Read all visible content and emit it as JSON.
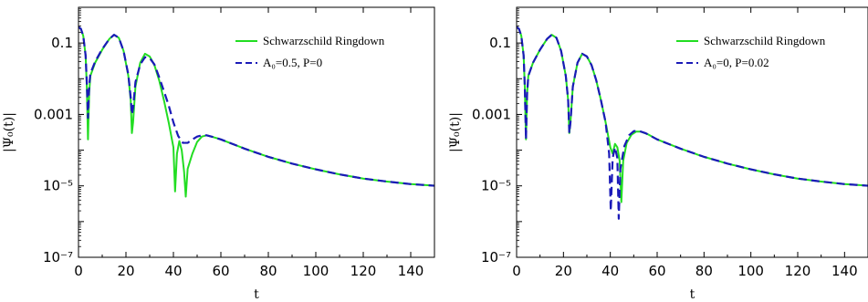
{
  "chart_data": [
    {
      "type": "line",
      "xlabel": "t",
      "ylabel": "|Ψ₀(t)|",
      "xlim": [
        0,
        150
      ],
      "ylim": [
        1e-07,
        1
      ],
      "yscale": "log",
      "x_ticks": [
        "0",
        "20",
        "40",
        "60",
        "80",
        "100",
        "120",
        "140"
      ],
      "y_ticks": [
        "10⁻⁷",
        "10⁻⁵",
        "0.001",
        "0.1"
      ],
      "legend_position": "top-right",
      "grid": false,
      "series": [
        {
          "name": "Schwarzschild Ringdown",
          "color": "#22dd22",
          "dash": "solid",
          "points": [
            [
              0,
              0.28
            ],
            [
              1,
              0.25
            ],
            [
              2,
              0.16
            ],
            [
              3,
              0.045
            ],
            [
              3.5,
              0.006
            ],
            [
              4,
              0.0002
            ],
            [
              4.5,
              0.004
            ],
            [
              5,
              0.012
            ],
            [
              7,
              0.028
            ],
            [
              10,
              0.065
            ],
            [
              13,
              0.13
            ],
            [
              15,
              0.17
            ],
            [
              17,
              0.14
            ],
            [
              19,
              0.06
            ],
            [
              21,
              0.012
            ],
            [
              22,
              0.0025
            ],
            [
              22.5,
              0.0003
            ],
            [
              23,
              0.0006
            ],
            [
              24,
              0.006
            ],
            [
              26,
              0.028
            ],
            [
              28,
              0.05
            ],
            [
              30,
              0.042
            ],
            [
              32,
              0.024
            ],
            [
              34,
              0.009
            ],
            [
              36,
              0.0025
            ],
            [
              38,
              0.0006
            ],
            [
              40,
              0.00012
            ],
            [
              40.7,
              7e-06
            ],
            [
              41.5,
              8e-05
            ],
            [
              42.5,
              0.00018
            ],
            [
              43.5,
              0.0001
            ],
            [
              44.5,
              2.5e-05
            ],
            [
              45.2,
              5e-06
            ],
            [
              46,
              3e-05
            ],
            [
              48,
              8e-05
            ],
            [
              50,
              0.00017
            ],
            [
              52,
              0.00024
            ],
            [
              54,
              0.00026
            ],
            [
              57,
              0.00023
            ],
            [
              60,
              0.0002
            ],
            [
              70,
              0.00011
            ],
            [
              80,
              6.5e-05
            ],
            [
              90,
              4.2e-05
            ],
            [
              100,
              2.9e-05
            ],
            [
              110,
              2.1e-05
            ],
            [
              120,
              1.6e-05
            ],
            [
              130,
              1.32e-05
            ],
            [
              140,
              1.12e-05
            ],
            [
              150,
              1.01e-05
            ]
          ]
        },
        {
          "name": "A₀=0.5, P=0",
          "color": "#1a1ab8",
          "dash": "dashed",
          "points": [
            [
              0,
              0.28
            ],
            [
              1,
              0.25
            ],
            [
              2,
              0.16
            ],
            [
              3,
              0.045
            ],
            [
              3.5,
              0.008
            ],
            [
              4,
              0.0008
            ],
            [
              4.5,
              0.006
            ],
            [
              5,
              0.014
            ],
            [
              7,
              0.03
            ],
            [
              10,
              0.068
            ],
            [
              13,
              0.13
            ],
            [
              15,
              0.17
            ],
            [
              17,
              0.14
            ],
            [
              19,
              0.06
            ],
            [
              21,
              0.013
            ],
            [
              22,
              0.003
            ],
            [
              22.5,
              0.001
            ],
            [
              23,
              0.0015
            ],
            [
              24,
              0.008
            ],
            [
              26,
              0.025
            ],
            [
              28,
              0.04
            ],
            [
              30,
              0.038
            ],
            [
              32,
              0.025
            ],
            [
              34,
              0.011
            ],
            [
              36,
              0.0045
            ],
            [
              38,
              0.0018
            ],
            [
              40,
              0.0006
            ],
            [
              42,
              0.00025
            ],
            [
              44,
              0.00016
            ],
            [
              46,
              0.00016
            ],
            [
              48,
              0.0002
            ],
            [
              50,
              0.00024
            ],
            [
              52,
              0.00026
            ],
            [
              54,
              0.00026
            ],
            [
              57,
              0.00023
            ],
            [
              60,
              0.0002
            ],
            [
              70,
              0.00011
            ],
            [
              80,
              6.5e-05
            ],
            [
              90,
              4.2e-05
            ],
            [
              100,
              2.9e-05
            ],
            [
              110,
              2.1e-05
            ],
            [
              120,
              1.6e-05
            ],
            [
              130,
              1.32e-05
            ],
            [
              140,
              1.12e-05
            ],
            [
              150,
              1.01e-05
            ]
          ]
        }
      ]
    },
    {
      "type": "line",
      "xlabel": "t",
      "ylabel": "|Ψ₀(t)|",
      "xlim": [
        0,
        150
      ],
      "ylim": [
        1e-07,
        1
      ],
      "yscale": "log",
      "x_ticks": [
        "0",
        "20",
        "40",
        "60",
        "80",
        "100",
        "120",
        "140"
      ],
      "y_ticks": [
        "10⁻⁷",
        "10⁻⁵",
        "0.001",
        "0.1"
      ],
      "legend_position": "top-right",
      "grid": false,
      "series": [
        {
          "name": "Schwarzschild Ringdown",
          "color": "#22dd22",
          "dash": "solid",
          "points": [
            [
              0,
              0.28
            ],
            [
              1,
              0.25
            ],
            [
              2,
              0.16
            ],
            [
              3,
              0.045
            ],
            [
              3.5,
              0.006
            ],
            [
              4,
              0.0002
            ],
            [
              4.5,
              0.004
            ],
            [
              5,
              0.012
            ],
            [
              7,
              0.028
            ],
            [
              10,
              0.065
            ],
            [
              13,
              0.13
            ],
            [
              15,
              0.17
            ],
            [
              17,
              0.14
            ],
            [
              19,
              0.06
            ],
            [
              21,
              0.012
            ],
            [
              22,
              0.0025
            ],
            [
              22.5,
              0.0003
            ],
            [
              23,
              0.0006
            ],
            [
              24,
              0.006
            ],
            [
              26,
              0.028
            ],
            [
              28,
              0.05
            ],
            [
              30,
              0.042
            ],
            [
              32,
              0.024
            ],
            [
              34,
              0.009
            ],
            [
              36,
              0.0025
            ],
            [
              38,
              0.0006
            ],
            [
              40,
              0.00012
            ],
            [
              41,
              8e-05
            ],
            [
              42,
              0.00015
            ],
            [
              43,
              0.00012
            ],
            [
              44,
              5e-05
            ],
            [
              44.7,
              3.5e-06
            ],
            [
              45.5,
              5e-05
            ],
            [
              47,
              0.00016
            ],
            [
              49,
              0.00027
            ],
            [
              51,
              0.00033
            ],
            [
              53,
              0.00033
            ],
            [
              56,
              0.00028
            ],
            [
              60,
              0.0002
            ],
            [
              70,
              0.00011
            ],
            [
              80,
              6.5e-05
            ],
            [
              90,
              4.2e-05
            ],
            [
              100,
              2.9e-05
            ],
            [
              110,
              2.1e-05
            ],
            [
              120,
              1.6e-05
            ],
            [
              130,
              1.32e-05
            ],
            [
              140,
              1.12e-05
            ],
            [
              150,
              1.01e-05
            ]
          ]
        },
        {
          "name": "A₀=0, P=0.02",
          "color": "#1a1ab8",
          "dash": "dashed",
          "points": [
            [
              0,
              0.28
            ],
            [
              1,
              0.25
            ],
            [
              2,
              0.16
            ],
            [
              3,
              0.045
            ],
            [
              3.5,
              0.006
            ],
            [
              4,
              0.0002
            ],
            [
              4.5,
              0.004
            ],
            [
              5,
              0.012
            ],
            [
              7,
              0.028
            ],
            [
              10,
              0.065
            ],
            [
              13,
              0.13
            ],
            [
              15,
              0.17
            ],
            [
              17,
              0.14
            ],
            [
              19,
              0.06
            ],
            [
              21,
              0.012
            ],
            [
              22,
              0.0025
            ],
            [
              22.5,
              0.0003
            ],
            [
              23,
              0.0006
            ],
            [
              24,
              0.006
            ],
            [
              26,
              0.028
            ],
            [
              28,
              0.05
            ],
            [
              30,
              0.042
            ],
            [
              32,
              0.024
            ],
            [
              34,
              0.009
            ],
            [
              36,
              0.0025
            ],
            [
              38,
              0.0006
            ],
            [
              39.5,
              8e-05
            ],
            [
              40.2,
              2e-06
            ],
            [
              41,
              6e-05
            ],
            [
              42,
              0.00012
            ],
            [
              43,
              6e-05
            ],
            [
              43.6,
              1.2e-06
            ],
            [
              44.3,
              3e-05
            ],
            [
              46,
              0.00013
            ],
            [
              48,
              0.00026
            ],
            [
              50,
              0.00034
            ],
            [
              52,
              0.00035
            ],
            [
              55,
              0.0003
            ],
            [
              60,
              0.0002
            ],
            [
              70,
              0.00011
            ],
            [
              80,
              6.5e-05
            ],
            [
              90,
              4.2e-05
            ],
            [
              100,
              2.9e-05
            ],
            [
              110,
              2.1e-05
            ],
            [
              120,
              1.6e-05
            ],
            [
              130,
              1.32e-05
            ],
            [
              140,
              1.12e-05
            ],
            [
              150,
              1.01e-05
            ]
          ]
        }
      ]
    }
  ]
}
